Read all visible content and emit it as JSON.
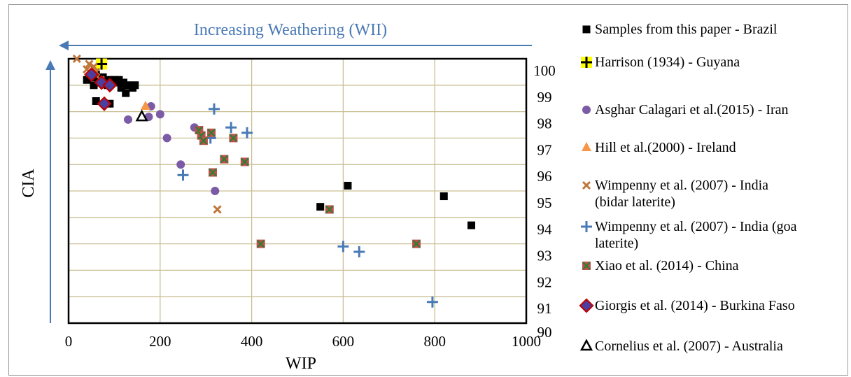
{
  "chart_data": {
    "type": "scatter",
    "xlabel": "WIP",
    "ylabel": "CIA",
    "xlim": [
      0,
      1000
    ],
    "ylim": [
      90,
      100
    ],
    "x_ticks": [
      "0",
      "200",
      "400",
      "600",
      "800",
      "1000"
    ],
    "y_ticks": [
      "90",
      "91",
      "92",
      "93",
      "94",
      "95",
      "96",
      "97",
      "98",
      "99",
      "100"
    ],
    "grid": true,
    "legend_position": "right",
    "arrow_label": "Increasing Weathering (WII)",
    "series": [
      {
        "name": "Samples from this paper - Brazil",
        "marker": "square",
        "color": "#000000",
        "points": [
          [
            40,
            99.2
          ],
          [
            50,
            99.3
          ],
          [
            55,
            99.0
          ],
          [
            60,
            99.4
          ],
          [
            65,
            99.2
          ],
          [
            70,
            99.1
          ],
          [
            75,
            99.3
          ],
          [
            80,
            99.1
          ],
          [
            85,
            99.0
          ],
          [
            90,
            99.2
          ],
          [
            100,
            99.2
          ],
          [
            105,
            99.1
          ],
          [
            110,
            99.2
          ],
          [
            115,
            98.9
          ],
          [
            120,
            99.1
          ],
          [
            125,
            98.7
          ],
          [
            130,
            99.0
          ],
          [
            140,
            98.9
          ],
          [
            145,
            99.0
          ],
          [
            60,
            98.4
          ],
          [
            90,
            98.3
          ],
          [
            550,
            94.4
          ],
          [
            610,
            95.2
          ],
          [
            820,
            94.8
          ],
          [
            880,
            93.7
          ]
        ]
      },
      {
        "name": "Harrison (1934) - Guyana",
        "marker": "plus",
        "color": "#000000",
        "fill": "#ffff00",
        "points": [
          [
            72,
            99.8
          ]
        ]
      },
      {
        "name": "Asghar Calagari et al.(2015) - Iran",
        "marker": "circle",
        "color": "#7b5aa6",
        "points": [
          [
            130,
            97.7
          ],
          [
            175,
            97.8
          ],
          [
            180,
            98.2
          ],
          [
            200,
            97.9
          ],
          [
            215,
            97.0
          ],
          [
            245,
            96.0
          ],
          [
            275,
            97.4
          ],
          [
            320,
            95.0
          ]
        ]
      },
      {
        "name": "Hill et al.(2000) - Ireland",
        "marker": "triangle",
        "color": "#f79646",
        "points": [
          [
            168,
            98.2
          ]
        ]
      },
      {
        "name": "Wimpenny et al. (2007) - India (bidar laterite)",
        "marker": "x",
        "color": "#c0763a",
        "points": [
          [
            18,
            100.0
          ],
          [
            40,
            99.6
          ],
          [
            45,
            99.8
          ],
          [
            50,
            99.4
          ],
          [
            55,
            99.7
          ],
          [
            60,
            99.5
          ],
          [
            70,
            99.2
          ],
          [
            325,
            94.3
          ]
        ]
      },
      {
        "name": "Wimpenny et al. (2007) - India (goa laterite)",
        "marker": "plus",
        "color": "#4a7ab5",
        "points": [
          [
            250,
            95.6
          ],
          [
            310,
            97.0
          ],
          [
            318,
            98.1
          ],
          [
            355,
            97.4
          ],
          [
            390,
            97.2
          ],
          [
            600,
            92.9
          ],
          [
            635,
            92.7
          ],
          [
            795,
            90.8
          ]
        ]
      },
      {
        "name": "Xiao et al. (2014) - China",
        "marker": "xsquare",
        "color": "#c0504d",
        "fill": "#2e7d32",
        "points": [
          [
            285,
            97.3
          ],
          [
            290,
            97.1
          ],
          [
            295,
            96.9
          ],
          [
            312,
            97.2
          ],
          [
            315,
            95.7
          ],
          [
            340,
            96.2
          ],
          [
            360,
            97.0
          ],
          [
            385,
            96.1
          ],
          [
            420,
            93.0
          ],
          [
            570,
            94.3
          ],
          [
            760,
            93.0
          ]
        ]
      },
      {
        "name": "Giorgis et al. (2014) - Burkina Faso",
        "marker": "diamond",
        "color": "#c00000",
        "fill": "#4a3fa0",
        "points": [
          [
            50,
            99.4
          ],
          [
            72,
            99.1
          ],
          [
            90,
            99.0
          ],
          [
            78,
            98.3
          ]
        ]
      },
      {
        "name": "Cornelius et al. (2007) - Australia",
        "marker": "open-triangle",
        "color": "#000000",
        "points": [
          [
            160,
            97.8
          ]
        ]
      }
    ]
  },
  "legend": [
    {
      "lines": [
        "Samples from this paper - Brazil"
      ]
    },
    {
      "lines": [
        "Harrison (1934) - Guyana"
      ]
    },
    {
      "lines": [
        "Asghar Calagari et al.(2015) - Iran"
      ]
    },
    {
      "lines": [
        "Hill et al.(2000) - Ireland"
      ]
    },
    {
      "lines": [
        "Wimpenny et al. (2007) - India",
        "(bidar laterite)"
      ]
    },
    {
      "lines": [
        "Wimpenny et al. (2007) - India (goa",
        "laterite)"
      ]
    },
    {
      "lines": [
        "Xiao et al. (2014) - China"
      ]
    },
    {
      "lines": [
        "Giorgis et al. (2014) - Burkina Faso"
      ]
    },
    {
      "lines": [
        "Cornelius et al. (2007) - Australia"
      ]
    }
  ]
}
